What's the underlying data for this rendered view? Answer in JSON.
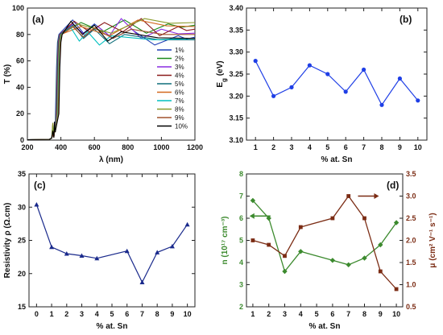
{
  "chart_data": [
    {
      "panel": "(a)",
      "type": "line",
      "xlabel": "λ (nm)",
      "ylabel": "T (%)",
      "xlim": [
        200,
        1200
      ],
      "ylim": [
        0,
        100
      ],
      "xticks": [
        200,
        400,
        600,
        800,
        1000,
        1200
      ],
      "yticks": [
        0,
        20,
        40,
        60,
        80,
        100
      ],
      "legend_position": "right",
      "series": [
        {
          "name": "1%",
          "color": "#1f3fb5",
          "peaks": [
            [
              470,
              91
            ],
            [
              600,
              88
            ],
            [
              820,
              84
            ],
            [
              1100,
              79
            ]
          ],
          "final": 78
        },
        {
          "name": "2%",
          "color": "#1b8a1b",
          "peaks": [
            [
              520,
              89
            ],
            [
              780,
              91
            ],
            [
              1040,
              88
            ]
          ],
          "final": 87
        },
        {
          "name": "3%",
          "color": "#8a2be2",
          "peaks": [
            [
              470,
              88
            ],
            [
              620,
              86
            ],
            [
              760,
              92
            ],
            [
              1000,
              84
            ]
          ],
          "final": 81
        },
        {
          "name": "4%",
          "color": "#8b1a1a",
          "peaks": [
            [
              480,
              90
            ],
            [
              660,
              89
            ],
            [
              880,
              92
            ],
            [
              1100,
              86
            ]
          ],
          "final": 84
        },
        {
          "name": "5%",
          "color": "#0e6e7a",
          "peaks": [
            [
              470,
              87
            ],
            [
              600,
              84
            ],
            [
              780,
              80
            ]
          ],
          "final": 76
        },
        {
          "name": "6%",
          "color": "#d2691e",
          "peaks": [
            [
              520,
              86
            ],
            [
              860,
              91
            ]
          ],
          "final": 86
        },
        {
          "name": "7%",
          "color": "#00bfbf",
          "peaks": [
            [
              460,
              85
            ],
            [
              560,
              82
            ],
            [
              700,
              79
            ]
          ],
          "final": 77
        },
        {
          "name": "8%",
          "color": "#8a9a2a",
          "peaks": [
            [
              500,
              88
            ],
            [
              900,
              92
            ]
          ],
          "final": 89
        },
        {
          "name": "9%",
          "color": "#a0522d",
          "peaks": [
            [
              470,
              86
            ],
            [
              600,
              85
            ],
            [
              820,
              84
            ]
          ],
          "final": 80
        },
        {
          "name": "10%",
          "color": "#000000",
          "peaks": [
            [
              460,
              90
            ],
            [
              600,
              87
            ],
            [
              760,
              82
            ]
          ],
          "final": 77
        }
      ]
    },
    {
      "panel": "(b)",
      "type": "line",
      "xlabel": "% at. Sn",
      "ylabel_main": "E",
      "ylabel_sub": "g",
      "ylabel_unit": " (eV)",
      "xlim": [
        0.5,
        10.5
      ],
      "ylim": [
        3.1,
        3.4
      ],
      "xticks": [
        1,
        2,
        3,
        4,
        5,
        6,
        7,
        8,
        9,
        10
      ],
      "yticks": [
        3.1,
        3.15,
        3.2,
        3.25,
        3.3,
        3.35,
        3.4
      ],
      "series": [
        {
          "color": "#1f3fe6",
          "x": [
            1,
            2,
            3,
            4,
            5,
            6,
            7,
            8,
            9,
            10
          ],
          "y": [
            3.28,
            3.2,
            3.22,
            3.27,
            3.25,
            3.21,
            3.26,
            3.18,
            3.24,
            3.19
          ]
        }
      ]
    },
    {
      "panel": "(c)",
      "type": "line",
      "xlabel": "% at. Sn",
      "ylabel": "Resistivity ρ (Ω.cm)",
      "xlim": [
        -0.5,
        10.5
      ],
      "ylim": [
        15,
        35
      ],
      "xticks": [
        0,
        1,
        2,
        3,
        4,
        5,
        6,
        7,
        8,
        9,
        10
      ],
      "yticks": [
        15,
        20,
        25,
        30,
        35
      ],
      "series": [
        {
          "color": "#1a2a8c",
          "x": [
            0,
            1,
            2,
            3,
            4,
            6,
            7,
            8,
            9,
            10
          ],
          "y": [
            30.4,
            24.0,
            23.0,
            22.7,
            22.3,
            23.4,
            18.7,
            23.2,
            24.1,
            27.4
          ]
        }
      ]
    },
    {
      "panel": "(d)",
      "type": "line",
      "xlabel": "% at. Sn",
      "ylabel_left": "n (10¹⁷ cm⁻³)",
      "ylabel_right": "μ (cm² V⁻¹ s⁻¹)",
      "xlim": [
        0.6,
        10.4
      ],
      "ylim_left": [
        2,
        8
      ],
      "ylim_right": [
        0.5,
        3.5
      ],
      "xticks": [
        1,
        2,
        3,
        4,
        5,
        6,
        7,
        8,
        9,
        10
      ],
      "yticks_left": [
        2,
        3,
        4,
        5,
        6,
        7,
        8
      ],
      "yticks_right": [
        "0.5",
        "1.0",
        "1.5",
        "2.0",
        "2.5",
        "3.0",
        "3.5"
      ],
      "series": [
        {
          "axis": "left",
          "color": "#3c8a2e",
          "x": [
            1,
            2,
            3,
            4,
            6,
            7,
            8,
            9,
            10
          ],
          "y": [
            6.8,
            6.0,
            3.6,
            4.5,
            4.1,
            3.9,
            4.2,
            4.8,
            5.8
          ]
        },
        {
          "axis": "right",
          "color": "#7b2c14",
          "x": [
            1,
            2,
            3,
            4,
            6,
            7,
            8,
            9,
            10
          ],
          "y": [
            2.0,
            1.9,
            1.65,
            2.3,
            2.5,
            3.0,
            2.5,
            1.3,
            0.9
          ]
        }
      ]
    }
  ]
}
